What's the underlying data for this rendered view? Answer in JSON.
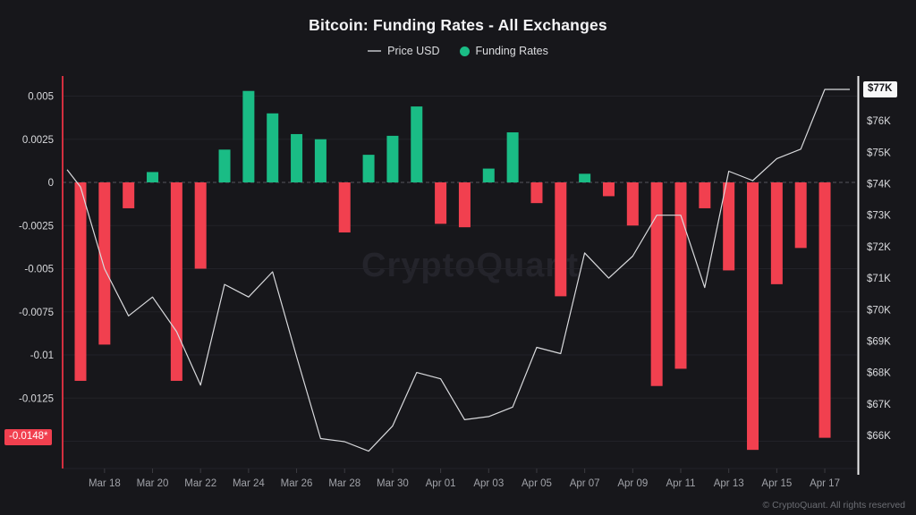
{
  "header": {
    "title": "Bitcoin: Funding Rates - All Exchanges",
    "legend": [
      {
        "label": "Price USD",
        "marker": "line",
        "color": "#97999e"
      },
      {
        "label": "Funding Rates",
        "marker": "dot",
        "color": "#1abc85"
      }
    ]
  },
  "watermark": "CryptoQuant",
  "footer": {
    "copyright": "© CryptoQuant. All rights reserved"
  },
  "colors": {
    "background": "#17171b",
    "bar_positive": "#1abc85",
    "bar_negative": "#f1404f",
    "price_line": "#d9dadd",
    "left_axis_line": "#d32e3f",
    "right_axis_line": "#ececee",
    "grid": "#222228",
    "zero_line": "#56565c",
    "x_tick": "#3c3c42",
    "y_label": "#d9dadd",
    "x_label": "#a0a2a8"
  },
  "chart_data": {
    "type": "bar",
    "note": "bar series (funding, left axis) + line series (price, right axis)",
    "categories": [
      "Mar 17",
      "Mar 18",
      "Mar 19",
      "Mar 20",
      "Mar 21",
      "Mar 22",
      "Mar 23",
      "Mar 24",
      "Mar 25",
      "Mar 26",
      "Mar 27",
      "Mar 28",
      "Mar 29",
      "Mar 30",
      "Mar 31",
      "Apr 01",
      "Apr 02",
      "Apr 03",
      "Apr 04",
      "Apr 05",
      "Apr 06",
      "Apr 07",
      "Apr 08",
      "Apr 09",
      "Apr 10",
      "Apr 11",
      "Apr 12",
      "Apr 13",
      "Apr 14",
      "Apr 15",
      "Apr 16",
      "Apr 17"
    ],
    "series": [
      {
        "name": "Funding Rates",
        "type": "bar",
        "axis": "left",
        "values": [
          -0.0115,
          -0.0094,
          -0.0015,
          0.0006,
          -0.0115,
          -0.005,
          0.0019,
          0.0053,
          0.004,
          0.0028,
          0.0025,
          -0.0029,
          0.0016,
          0.0027,
          0.0044,
          -0.0024,
          -0.0026,
          0.0008,
          0.0029,
          -0.0012,
          -0.0066,
          0.0005,
          -0.0008,
          -0.0025,
          -0.0118,
          -0.0108,
          -0.0015,
          -0.0051,
          -0.0155,
          -0.0059,
          -0.0038,
          -0.0148
        ]
      },
      {
        "name": "Price USD",
        "type": "line",
        "axis": "right",
        "unit": "USD thousands",
        "values": [
          73.9,
          71.3,
          69.8,
          70.4,
          69.3,
          67.6,
          70.8,
          70.4,
          71.2,
          68.5,
          65.9,
          65.8,
          65.5,
          66.3,
          68.0,
          67.8,
          66.5,
          66.6,
          66.9,
          68.8,
          68.6,
          71.8,
          71.0,
          71.7,
          73.0,
          73.0,
          70.7,
          74.4,
          74.1,
          74.8,
          75.1,
          77.0
        ],
        "edge_start_value": 74.45,
        "edge_end_value": 77.0
      }
    ],
    "left_axis": {
      "tick_labels": [
        "0.005",
        "0.0025",
        "0",
        "-0.0025",
        "-0.005",
        "-0.0075",
        "-0.01",
        "-0.0125"
      ],
      "tick_values": [
        0.005,
        0.0025,
        0,
        -0.0025,
        -0.005,
        -0.0075,
        -0.01,
        -0.0125
      ],
      "extra_grid_values": [
        -0.015
      ],
      "current_badge": {
        "label": "-0.0148*",
        "value": -0.0148
      }
    },
    "right_axis": {
      "tick_labels": [
        "$77K",
        "$76K",
        "$75K",
        "$74K",
        "$73K",
        "$72K",
        "$71K",
        "$70K",
        "$69K",
        "$68K",
        "$67K",
        "$66K"
      ],
      "tick_values": [
        77,
        76,
        75,
        74,
        73,
        72,
        71,
        70,
        69,
        68,
        67,
        66
      ],
      "current_badge": {
        "label": "$77K",
        "value": 77
      }
    },
    "x_axis": {
      "labels": [
        "Mar 18",
        "Mar 20",
        "Mar 22",
        "Mar 24",
        "Mar 26",
        "Mar 28",
        "Mar 30",
        "Apr 01",
        "Apr 03",
        "Apr 05",
        "Apr 07",
        "Apr 09",
        "Apr 11",
        "Apr 13",
        "Apr 15",
        "Apr 17"
      ],
      "label_indices": [
        1,
        3,
        5,
        7,
        9,
        11,
        13,
        15,
        17,
        19,
        21,
        23,
        25,
        27,
        29,
        31
      ]
    },
    "grid": true,
    "legend_position": "top"
  }
}
